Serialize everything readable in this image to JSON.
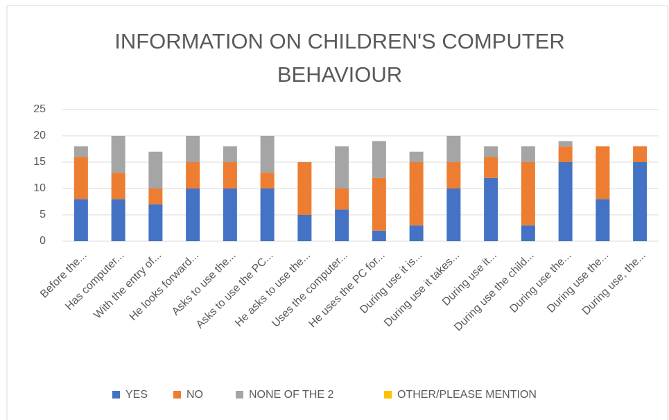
{
  "chart_data": {
    "type": "stacked_bar",
    "title": "INFORMATION ON CHILDREN'S COMPUTER BEHAVIOUR",
    "categories": [
      "Before the...",
      "Has computer...",
      "With the entry of...",
      "He looks forward...",
      "Asks to use the...",
      "Asks to use the PC...",
      "He asks to use the...",
      "Uses the computer...",
      "He uses the PC for...",
      "During use it is...",
      "During use it takes...",
      "During use it...",
      "During use the child...",
      "During use the...",
      "During use the...",
      "During use, the..."
    ],
    "series": [
      {
        "name": "YES",
        "color": "#4472c4",
        "values": [
          8,
          8,
          7,
          10,
          10,
          10,
          5,
          6,
          2,
          3,
          10,
          12,
          3,
          15,
          8,
          15
        ]
      },
      {
        "name": "NO",
        "color": "#ed7d31",
        "values": [
          8,
          5,
          3,
          5,
          5,
          3,
          10,
          4,
          10,
          12,
          5,
          4,
          12,
          3,
          10,
          3
        ]
      },
      {
        "name": "NONE OF THE 2",
        "color": "#a5a5a5",
        "values": [
          2,
          7,
          7,
          5,
          3,
          7,
          0,
          8,
          7,
          2,
          5,
          2,
          3,
          1,
          0,
          0
        ]
      },
      {
        "name": "OTHER/PLEASE MENTION",
        "color": "#ffc000",
        "values": [
          0,
          0,
          0,
          0,
          0,
          0,
          0,
          0,
          0,
          0,
          0,
          0,
          0,
          0,
          0,
          0
        ]
      }
    ],
    "ylim": [
      0,
      25
    ],
    "yticks": [
      0,
      5,
      10,
      15,
      20,
      25
    ],
    "grid": true,
    "legend": "bottom"
  }
}
